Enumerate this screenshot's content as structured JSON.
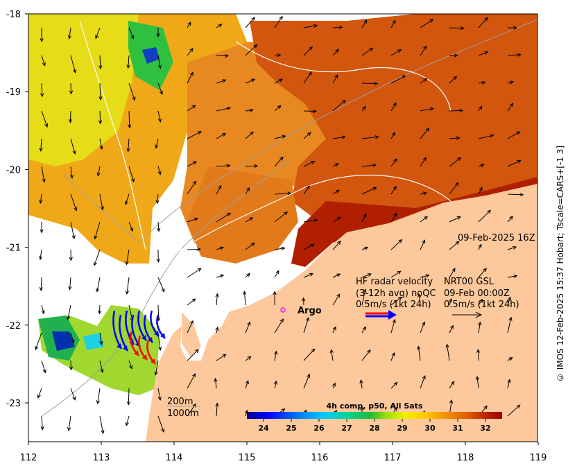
{
  "map": {
    "timestamp_label": "09-Feb-2025 16Z",
    "x_ticks": [
      "112",
      "113",
      "114",
      "115",
      "116",
      "117",
      "118",
      "119"
    ],
    "y_ticks": [
      "-18",
      "-19",
      "-20",
      "-21",
      "-22",
      "-23"
    ],
    "argo_label": "Argo",
    "depth_labels": [
      "200m",
      "1000m"
    ],
    "colors": {
      "land": "#fdc89b",
      "argo": "#ff00ff",
      "radar_arrow": "#0000ff",
      "radar_arrow_alt": "#ff0000"
    }
  },
  "legend": {
    "hf_lines": [
      "HF radar velocity",
      "(3-12h avg) noQC",
      "0.5m/s (1kt 24h)"
    ],
    "nrt_lines": [
      "NRT00 GSL",
      "09-Feb 00:00Z",
      "0.5m/s (1kt 24h)"
    ]
  },
  "colorbar": {
    "title": "4h comp, p50, All Sats",
    "ticks": [
      "24",
      "25",
      "26",
      "27",
      "28",
      "29",
      "30",
      "31",
      "32"
    ],
    "range": [
      23.4,
      32.6
    ],
    "colors": [
      "#00008b",
      "#0000ff",
      "#0078ff",
      "#00c8ff",
      "#00e0a0",
      "#20c040",
      "#80e000",
      "#e0f000",
      "#ffd000",
      "#f0a000",
      "#e07000",
      "#c03000",
      "#a00000"
    ]
  },
  "credit": "© IMOS 12-Feb-2025 15:37 Hobart; Tscale=CARS+[-1 3]"
}
